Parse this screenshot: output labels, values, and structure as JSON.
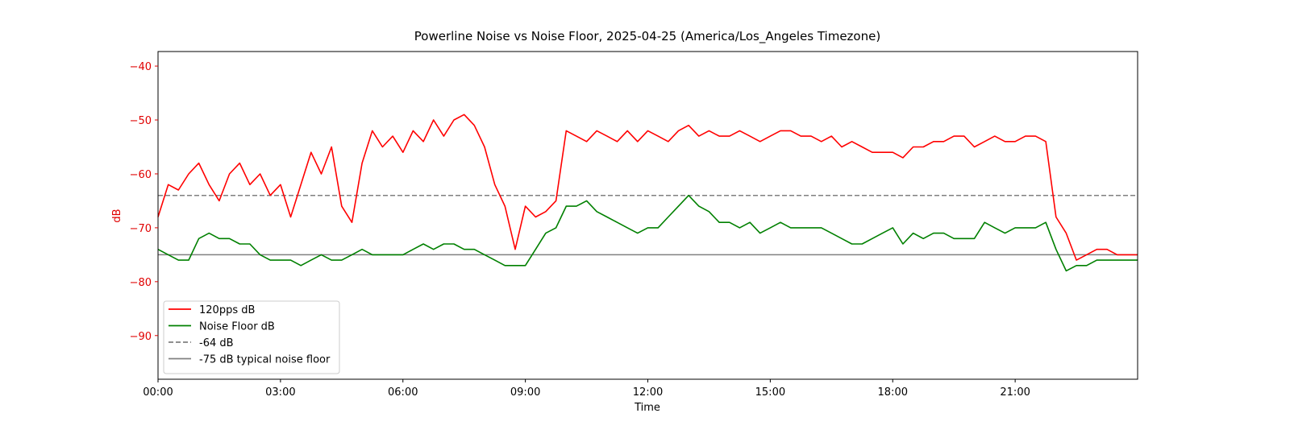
{
  "chart_data": {
    "type": "line",
    "title": "Powerline Noise vs Noise Floor, 2025-04-25 (America/Los_Angeles Timezone)",
    "xlabel": "Time",
    "ylabel": "dB",
    "xlim": [
      0,
      24
    ],
    "ylim": [
      -98.1,
      -37.3
    ],
    "xticks": [
      {
        "value": 0,
        "label": "00:00"
      },
      {
        "value": 3,
        "label": "03:00"
      },
      {
        "value": 6,
        "label": "06:00"
      },
      {
        "value": 9,
        "label": "09:00"
      },
      {
        "value": 12,
        "label": "12:00"
      },
      {
        "value": 15,
        "label": "15:00"
      },
      {
        "value": 18,
        "label": "18:00"
      },
      {
        "value": 21,
        "label": "21:00"
      }
    ],
    "yticks": [
      {
        "value": -40,
        "label": "−40"
      },
      {
        "value": -50,
        "label": "−50"
      },
      {
        "value": -60,
        "label": "−60"
      },
      {
        "value": -70,
        "label": "−70"
      },
      {
        "value": -80,
        "label": "−80"
      },
      {
        "value": -90,
        "label": "−90"
      }
    ],
    "axis_color": "#e00000",
    "legend": "lower left",
    "x": [
      0,
      0.25,
      0.5,
      0.75,
      1,
      1.25,
      1.5,
      1.75,
      2,
      2.25,
      2.5,
      2.75,
      3,
      3.25,
      3.5,
      3.75,
      4,
      4.25,
      4.5,
      4.75,
      5,
      5.25,
      5.5,
      5.75,
      6,
      6.25,
      6.5,
      6.75,
      7,
      7.25,
      7.5,
      7.75,
      8,
      8.25,
      8.5,
      8.75,
      9,
      9.25,
      9.5,
      9.75,
      10,
      10.25,
      10.5,
      10.75,
      11,
      11.25,
      11.5,
      11.75,
      12,
      12.25,
      12.5,
      12.75,
      13,
      13.25,
      13.5,
      13.75,
      14,
      14.25,
      14.5,
      14.75,
      15,
      15.25,
      15.5,
      15.75,
      16,
      16.25,
      16.5,
      16.75,
      17,
      17.25,
      17.5,
      17.75,
      18,
      18.25,
      18.5,
      18.75,
      19,
      19.25,
      19.5,
      19.75,
      20,
      20.25,
      20.5,
      20.75,
      21,
      21.25,
      21.5,
      21.75,
      22,
      22.25,
      22.5,
      22.75,
      23,
      23.25,
      23.5,
      23.75,
      24
    ],
    "series": [
      {
        "name": "120pps dB",
        "color": "#ff0000",
        "values": [
          -68,
          -62,
          -63,
          -60,
          -58,
          -62,
          -65,
          -60,
          -58,
          -62,
          -60,
          -64,
          -62,
          -68,
          -62,
          -56,
          -60,
          -55,
          -66,
          -69,
          -58,
          -52,
          -55,
          -53,
          -56,
          -52,
          -54,
          -50,
          -53,
          -50,
          -49,
          -51,
          -55,
          -62,
          -66,
          -74,
          -66,
          -68,
          -67,
          -65,
          -52,
          -53,
          -54,
          -52,
          -53,
          -54,
          -52,
          -54,
          -52,
          -53,
          -54,
          -52,
          -51,
          -53,
          -52,
          -53,
          -53,
          -52,
          -53,
          -54,
          -53,
          -52,
          -52,
          -53,
          -53,
          -54,
          -53,
          -55,
          -54,
          -55,
          -56,
          -56,
          -56,
          -57,
          -55,
          -55,
          -54,
          -54,
          -53,
          -53,
          -55,
          -54,
          -53,
          -54,
          -54,
          -53,
          -53,
          -54,
          -68,
          -71,
          -76,
          -75,
          -74,
          -74,
          -75,
          -75,
          -75
        ]
      },
      {
        "name": "Noise Floor dB",
        "color": "#008000",
        "values": [
          -74,
          -75,
          -76,
          -76,
          -72,
          -71,
          -72,
          -72,
          -73,
          -73,
          -75,
          -76,
          -76,
          -76,
          -77,
          -76,
          -75,
          -76,
          -76,
          -75,
          -74,
          -75,
          -75,
          -75,
          -75,
          -74,
          -73,
          -74,
          -73,
          -73,
          -74,
          -74,
          -75,
          -76,
          -77,
          -77,
          -77,
          -74,
          -71,
          -70,
          -66,
          -66,
          -65,
          -67,
          -68,
          -69,
          -70,
          -71,
          -70,
          -70,
          -68,
          -66,
          -64,
          -66,
          -67,
          -69,
          -69,
          -70,
          -69,
          -71,
          -70,
          -69,
          -70,
          -70,
          -70,
          -70,
          -71,
          -72,
          -73,
          -73,
          -72,
          -71,
          -70,
          -73,
          -71,
          -72,
          -71,
          -71,
          -72,
          -72,
          -72,
          -69,
          -70,
          -71,
          -70,
          -70,
          -70,
          -69,
          -74,
          -78,
          -77,
          -77,
          -76,
          -76,
          -76,
          -76,
          -76
        ]
      }
    ],
    "hlines": [
      {
        "name": "-64 dB",
        "value": -64,
        "color": "#808080",
        "style": "dashed"
      },
      {
        "name": "-75 dB typical noise floor",
        "value": -75,
        "color": "#808080",
        "style": "solid"
      }
    ]
  }
}
